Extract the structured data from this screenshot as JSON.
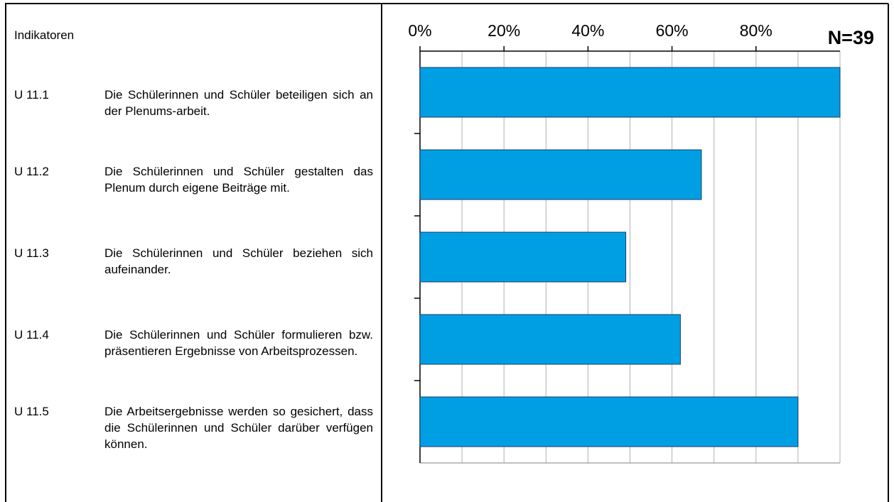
{
  "chart_data": {
    "type": "bar",
    "orientation": "horizontal",
    "header": "Indikatoren",
    "annotation": "N=39",
    "categories": [
      "U 11.1",
      "U 11.2",
      "U 11.3",
      "U 11.4",
      "U 11.5"
    ],
    "descriptions": [
      "Die Schülerinnen und Schüler beteiligen sich an der Plenums-arbeit.",
      "Die Schülerinnen und Schüler gestalten das Plenum durch eigene Beiträge mit.",
      "Die Schülerinnen und Schüler beziehen sich aufeinander.",
      "Die Schülerinnen und Schüler formulieren bzw. präsentieren Ergebnisse von Arbeitsprozessen.",
      "Die Arbeitsergebnisse werden so gesichert, dass die Schülerinnen und Schüler darüber verfügen können."
    ],
    "values": [
      100,
      67,
      49,
      62,
      90
    ],
    "color": "#009fe3",
    "xlim": [
      0,
      100
    ],
    "xticks": [
      {
        "value": 0,
        "label": "0%"
      },
      {
        "value": 20,
        "label": "20%"
      },
      {
        "value": 40,
        "label": "40%"
      },
      {
        "value": 60,
        "label": "60%"
      },
      {
        "value": 80,
        "label": "80%"
      }
    ],
    "grid_xticks": [
      10,
      20,
      30,
      40,
      50,
      60,
      70,
      80,
      90,
      100
    ],
    "grid": true
  }
}
